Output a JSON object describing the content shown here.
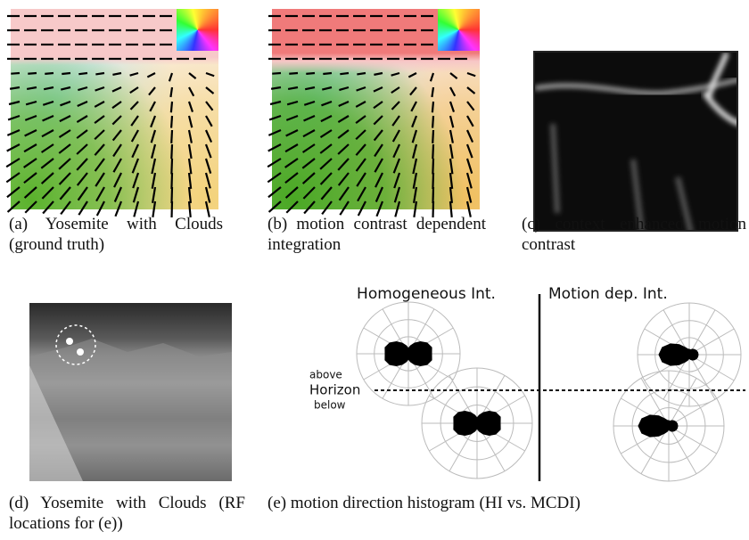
{
  "panels": [
    {
      "caption": "(a) Yosemite with Clouds (ground truth)"
    },
    {
      "caption": "(b) motion contrast dependent integration"
    },
    {
      "caption": "(c) context enhanced motion contrast"
    },
    {
      "caption": "(d) Yosemite with Clouds (RF locations for (e))"
    },
    {
      "caption": "(e) motion direction histogram (HI vs. MCDI)"
    }
  ],
  "histogram": {
    "left_title": "Homogeneous Int.",
    "right_title": "Motion dep. Int.",
    "above": "above",
    "horizon": "Horizon",
    "below": "below"
  }
}
